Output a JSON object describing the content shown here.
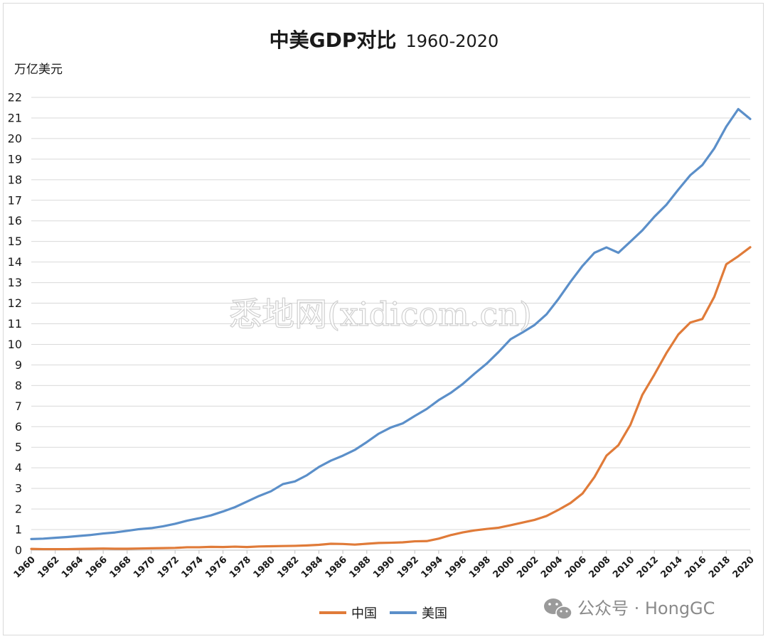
{
  "chart_data": {
    "type": "line",
    "title": "中美GDP对比",
    "title_years": "1960-2020",
    "ylabel": "万亿美元",
    "xlabel": "",
    "ylim": [
      0,
      22
    ],
    "yticks": [
      0,
      1,
      2,
      3,
      4,
      5,
      6,
      7,
      8,
      9,
      10,
      11,
      12,
      13,
      14,
      15,
      16,
      17,
      18,
      19,
      20,
      21,
      22
    ],
    "xticks": [
      "1960",
      "1962",
      "1964",
      "1966",
      "1968",
      "1970",
      "1972",
      "1974",
      "1976",
      "1978",
      "1980",
      "1982",
      "1984",
      "1986",
      "1988",
      "1990",
      "1992",
      "1994",
      "1996",
      "1998",
      "2000",
      "2002",
      "2004",
      "2006",
      "2008",
      "2010",
      "2012",
      "2014",
      "2016",
      "2018",
      "2020"
    ],
    "x": [
      1960,
      1961,
      1962,
      1963,
      1964,
      1965,
      1966,
      1967,
      1968,
      1969,
      1970,
      1971,
      1972,
      1973,
      1974,
      1975,
      1976,
      1977,
      1978,
      1979,
      1980,
      1981,
      1982,
      1983,
      1984,
      1985,
      1986,
      1987,
      1988,
      1989,
      1990,
      1991,
      1992,
      1993,
      1994,
      1995,
      1996,
      1997,
      1998,
      1999,
      2000,
      2001,
      2002,
      2003,
      2004,
      2005,
      2006,
      2007,
      2008,
      2009,
      2010,
      2011,
      2012,
      2013,
      2014,
      2015,
      2016,
      2017,
      2018,
      2019,
      2020
    ],
    "series": [
      {
        "name": "中国",
        "color": "#E07B39",
        "values": [
          0.06,
          0.05,
          0.05,
          0.05,
          0.06,
          0.07,
          0.08,
          0.07,
          0.07,
          0.08,
          0.09,
          0.1,
          0.11,
          0.14,
          0.14,
          0.16,
          0.15,
          0.17,
          0.15,
          0.18,
          0.19,
          0.2,
          0.21,
          0.23,
          0.26,
          0.31,
          0.3,
          0.27,
          0.31,
          0.35,
          0.36,
          0.38,
          0.43,
          0.44,
          0.56,
          0.73,
          0.86,
          0.96,
          1.03,
          1.09,
          1.21,
          1.34,
          1.47,
          1.66,
          1.96,
          2.29,
          2.75,
          3.55,
          4.59,
          5.1,
          6.09,
          7.55,
          8.53,
          9.57,
          10.48,
          11.06,
          11.23,
          12.31,
          13.89,
          14.28,
          14.72
        ]
      },
      {
        "name": "美国",
        "color": "#5B8FC9",
        "values": [
          0.54,
          0.56,
          0.6,
          0.64,
          0.69,
          0.74,
          0.81,
          0.86,
          0.94,
          1.02,
          1.07,
          1.16,
          1.28,
          1.43,
          1.55,
          1.69,
          1.88,
          2.09,
          2.36,
          2.63,
          2.86,
          3.21,
          3.34,
          3.64,
          4.04,
          4.35,
          4.59,
          4.87,
          5.25,
          5.66,
          5.96,
          6.16,
          6.52,
          6.86,
          7.29,
          7.64,
          8.07,
          8.58,
          9.06,
          9.63,
          10.25,
          10.58,
          10.94,
          11.46,
          12.21,
          13.04,
          13.81,
          14.45,
          14.71,
          14.45,
          14.99,
          15.54,
          16.2,
          16.78,
          17.52,
          18.22,
          18.71,
          19.52,
          20.58,
          21.43,
          20.95
        ]
      }
    ],
    "legend": [
      "中国",
      "美国"
    ],
    "legend_position": "bottom-center"
  },
  "watermark": "悉地网(xidicom.cn)",
  "brand": {
    "icon": "wechat-icon",
    "text": "公众号 · HongGC"
  }
}
